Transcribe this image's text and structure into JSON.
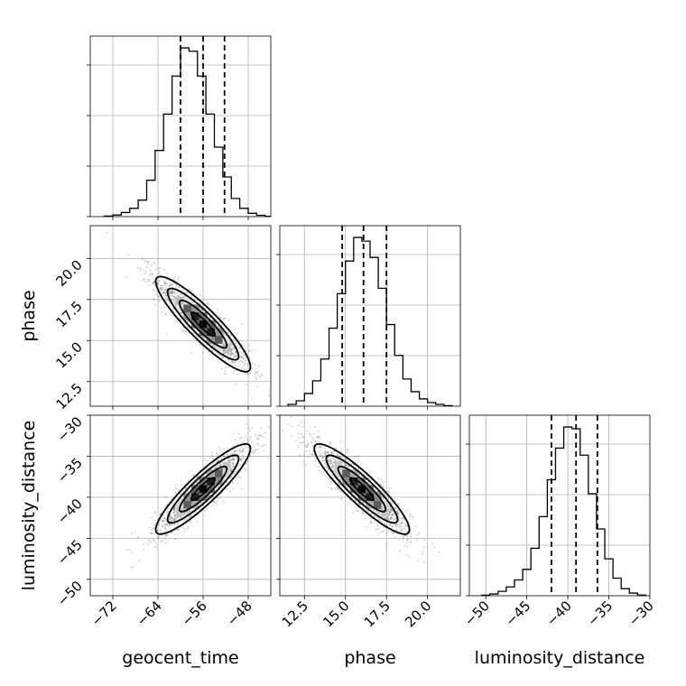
{
  "chart_data": {
    "type": "corner",
    "parameters": [
      "geocent_time",
      "phase",
      "luminosity_distance"
    ],
    "ranges": {
      "geocent_time": [
        -76,
        -44
      ],
      "phase": [
        11.0,
        22.0
      ],
      "luminosity_distance": [
        -52,
        -30
      ]
    },
    "ticks": {
      "geocent_time": [
        -72,
        -64,
        -56,
        -48
      ],
      "phase": [
        12.5,
        15.0,
        17.5,
        20.0
      ],
      "luminosity_distance": [
        -50,
        -45,
        -40,
        -35,
        -30
      ]
    },
    "tick_labels": {
      "geocent_time": [
        "−72",
        "−64",
        "−56",
        "−48"
      ],
      "phase": [
        "12.5",
        "15.0",
        "17.5",
        "20.0"
      ],
      "luminosity_distance": [
        "−50",
        "−45",
        "−40",
        "−35",
        "−30"
      ]
    },
    "diagonal": {
      "geocent_time": {
        "edges": [
          -73.5,
          -72,
          -70.5,
          -69,
          -67.5,
          -66,
          -64.5,
          -63,
          -61.5,
          -60,
          -58.5,
          -57,
          -55.5,
          -54,
          -52.5,
          -51,
          -49.5,
          -48,
          -46.5,
          -45,
          -43.5
        ],
        "counts": [
          0.3,
          1.0,
          2.5,
          5,
          10,
          22,
          40,
          62,
          85,
          102,
          100,
          85,
          62,
          42,
          24,
          11,
          5,
          2,
          0.8,
          0.2
        ],
        "quantiles": [
          -60,
          -56,
          -52.2
        ]
      },
      "phase": {
        "edges": [
          11.5,
          12.0,
          12.5,
          13.0,
          13.5,
          14.0,
          14.5,
          15.0,
          15.5,
          16.0,
          16.5,
          17.0,
          17.5,
          18.0,
          18.5,
          19.0,
          19.5,
          20.0,
          20.5,
          21.0,
          21.5
        ],
        "counts": [
          1,
          3,
          7,
          14,
          26,
          43,
          62,
          80,
          93,
          91,
          82,
          65,
          45,
          28,
          15,
          8,
          4,
          2,
          1,
          0.3
        ],
        "quantiles": [
          14.8,
          16.1,
          17.5
        ]
      },
      "luminosity_distance": {
        "edges": [
          -50.5,
          -49.5,
          -48.5,
          -47.5,
          -46.5,
          -45.5,
          -44.5,
          -43.5,
          -42.5,
          -41.5,
          -40.5,
          -39.5,
          -38.5,
          -37.5,
          -36.5,
          -35.5,
          -34.5,
          -33.5,
          -32.5,
          -31.5,
          -30.5
        ],
        "counts": [
          0.3,
          1,
          2.5,
          5,
          9,
          15,
          27,
          45,
          66,
          84,
          96,
          95,
          80,
          58,
          38,
          21,
          10,
          4,
          1.5,
          0.4
        ],
        "quantiles": [
          -42,
          -39,
          -36.4
        ]
      }
    },
    "pairs": [
      {
        "x": "geocent_time",
        "y": "phase",
        "mean": [
          -56,
          16.0
        ],
        "std": [
          4.2,
          1.45
        ],
        "corr": -0.9
      },
      {
        "x": "geocent_time",
        "y": "luminosity_distance",
        "mean": [
          -56,
          -39.0
        ],
        "std": [
          4.2,
          2.75
        ],
        "corr": 0.9
      },
      {
        "x": "phase",
        "y": "luminosity_distance",
        "mean": [
          16.0,
          -39.0
        ],
        "std": [
          1.45,
          2.75
        ],
        "corr": -0.9
      }
    ],
    "contour_levels": [
      0.5,
      1.0,
      1.5,
      2.0
    ],
    "line_style": {
      "histogram": "step",
      "quantiles": "dashed",
      "colors": {
        "main": "#000000",
        "grid": "#b0b0b0",
        "scatter": "#555555"
      }
    },
    "grid": true
  }
}
